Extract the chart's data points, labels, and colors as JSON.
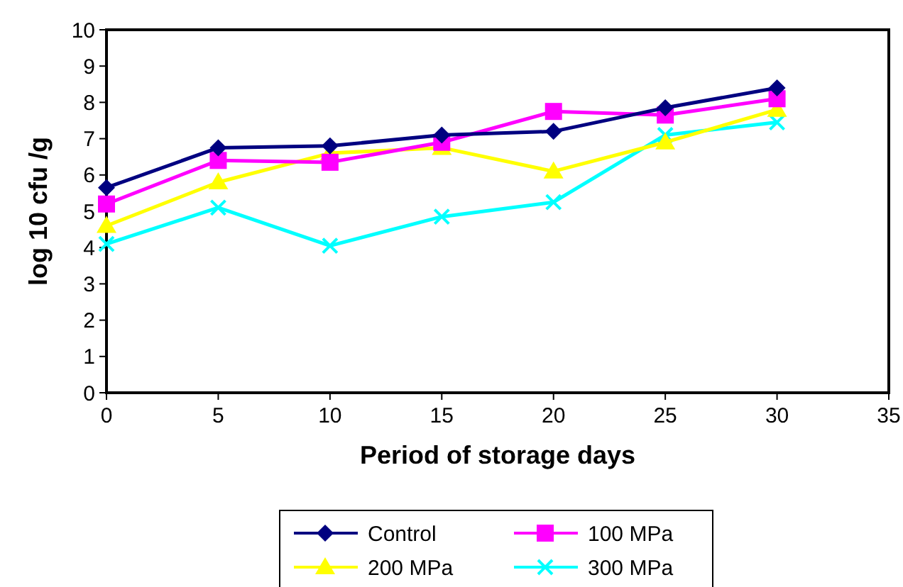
{
  "chart_data": {
    "type": "line",
    "xlabel": "Period of storage days",
    "ylabel": "log 10 cfu /g",
    "x": [
      0,
      5,
      10,
      15,
      20,
      25,
      30
    ],
    "xlim": [
      0,
      35
    ],
    "xticks": [
      0,
      5,
      10,
      15,
      20,
      25,
      30,
      35
    ],
    "ylim": [
      0,
      10
    ],
    "yticks": [
      0,
      1,
      2,
      3,
      4,
      5,
      6,
      7,
      8,
      9,
      10
    ],
    "grid": false,
    "legend": "bottom",
    "line_style": "solid",
    "series": [
      {
        "name": "Control",
        "color": "#000080",
        "marker": "diamond",
        "values": [
          5.65,
          6.75,
          6.8,
          7.1,
          7.2,
          7.85,
          8.4
        ]
      },
      {
        "name": "100 MPa",
        "color": "#ff00ff",
        "marker": "square",
        "values": [
          5.2,
          6.4,
          6.35,
          6.9,
          7.75,
          7.65,
          8.1
        ]
      },
      {
        "name": "200 MPa",
        "color": "#ffff00",
        "marker": "triangle",
        "values": [
          4.6,
          5.8,
          6.6,
          6.75,
          6.1,
          6.9,
          7.8
        ]
      },
      {
        "name": "300 MPa",
        "color": "#00ffff",
        "marker": "cross",
        "values": [
          4.1,
          5.1,
          4.05,
          4.85,
          5.25,
          7.1,
          7.45
        ]
      }
    ]
  }
}
